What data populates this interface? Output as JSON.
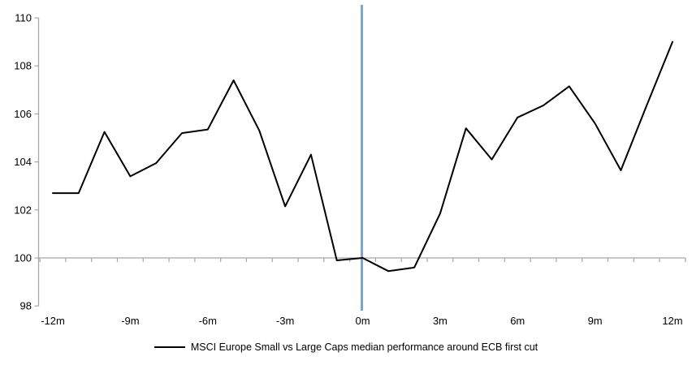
{
  "chart_data": {
    "type": "line",
    "x": [
      -12,
      -11,
      -10,
      -9,
      -8,
      -7,
      -6,
      -5,
      -4,
      -3,
      -2,
      -1,
      0,
      1,
      2,
      3,
      4,
      5,
      6,
      7,
      8,
      9,
      10,
      11,
      12
    ],
    "series": [
      {
        "name": "MSCI Europe Small vs Large Caps median performance around ECB first cut",
        "values": [
          102.7,
          102.7,
          105.25,
          103.4,
          103.95,
          105.2,
          105.35,
          107.4,
          105.3,
          102.15,
          104.3,
          99.9,
          100.0,
          99.45,
          99.6,
          101.85,
          105.4,
          104.1,
          105.85,
          106.35,
          107.15,
          105.6,
          103.65,
          106.35,
          109.0
        ]
      }
    ],
    "title": "",
    "xlabel": "",
    "ylabel": "",
    "xlim": [
      -12.5,
      12.5
    ],
    "ylim": [
      98,
      110.5
    ],
    "axis_crosses_at": 100,
    "event_line_x": 0,
    "x_tick_labels": [
      "-12m",
      "-9m",
      "-6m",
      "-3m",
      "0m",
      "3m",
      "6m",
      "9m",
      "12m"
    ],
    "x_tick_values": [
      -12,
      -9,
      -6,
      -3,
      0,
      3,
      6,
      9,
      12
    ],
    "y_tick_labels": [
      "98",
      "100",
      "102",
      "104",
      "106",
      "108",
      "110"
    ],
    "y_tick_values": [
      98,
      100,
      102,
      104,
      106,
      108,
      110
    ],
    "grid": "off",
    "legend_position": "bottom-center",
    "colors": {
      "series": "#000000",
      "event_line": "#7CA6CE",
      "axis": "#A6A6A6",
      "text": "#000000",
      "background": "#FFFFFF"
    }
  },
  "legend": {
    "label": "MSCI Europe Small vs Large Caps median performance around ECB first cut"
  }
}
